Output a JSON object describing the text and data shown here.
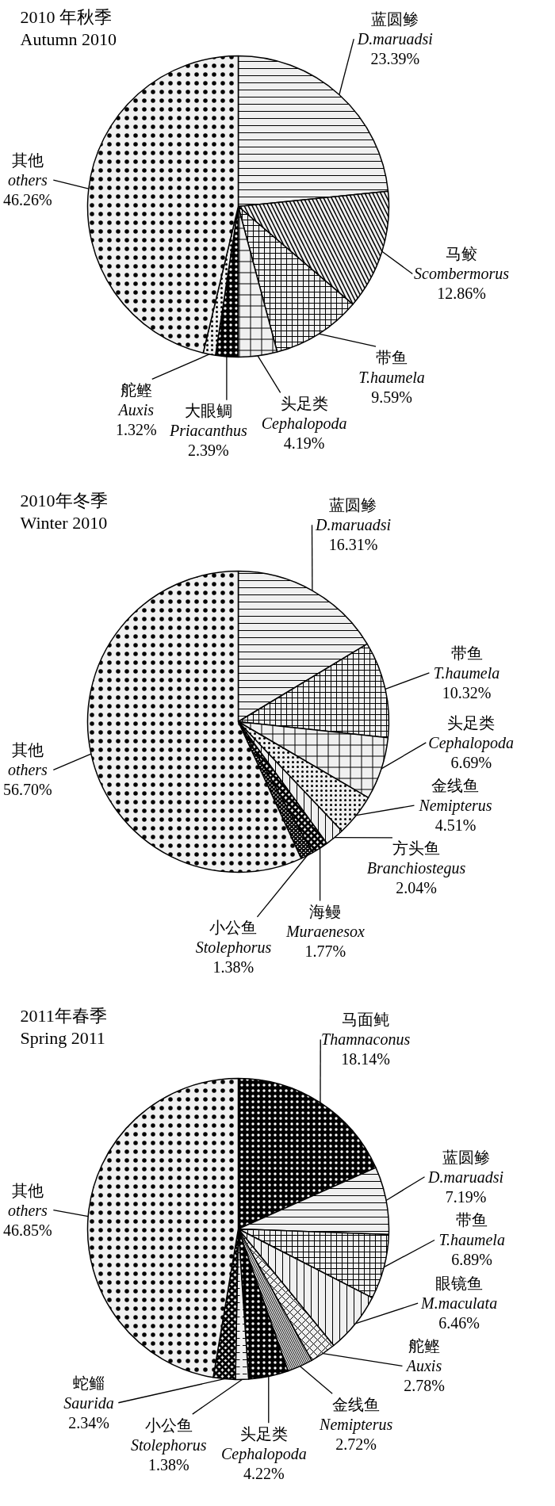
{
  "chart_data": [
    {
      "type": "pie",
      "title": "2010 年秋季",
      "subtitle": "Autumn 2010",
      "categories": [
        "蓝圆鲹\nD.maruadsi",
        "马鲛\nScombermorus",
        "带鱼\nT.haumela",
        "头足类\nCephalopoda",
        "大眼鲷\nPriacanthus",
        "舵鲣\nAuxis",
        "其他\nothers"
      ],
      "values": [
        23.39,
        12.86,
        9.59,
        4.19,
        2.39,
        1.32,
        46.26
      ],
      "value_labels": [
        "23.39%",
        "12.86%",
        "9.59%",
        "4.19%",
        "2.39%",
        "1.32%",
        "46.26%"
      ],
      "colors": [
        "#f0f0f0",
        "#f0f0f0",
        "#f0f0f0",
        "#f0f0f0",
        "#000000",
        "#f0f0f0",
        "#f0f0f0"
      ]
    },
    {
      "type": "pie",
      "title": "2010年冬季",
      "subtitle": "Winter 2010",
      "categories": [
        "蓝圆鲹\nD.maruadsi",
        "带鱼\nT.haumela",
        "头足类\nCephalopoda",
        "金线鱼\nNemipterus",
        "方头鱼\nBranchiostegus",
        "海鳗\nMuraenesox",
        "小公鱼\nStolephorus",
        "其他\nothers"
      ],
      "values": [
        16.31,
        10.32,
        6.69,
        4.51,
        2.04,
        1.77,
        1.38,
        56.7
      ],
      "value_labels": [
        "16.31%",
        "10.32%",
        "6.69%",
        "4.51%",
        "2.04%",
        "1.77%",
        "1.38%",
        "56.70%"
      ],
      "colors": [
        "#f0f0f0",
        "#f0f0f0",
        "#f0f0f0",
        "#f0f0f0",
        "#f0f0f0",
        "#f0f0f0",
        "#f0f0f0",
        "#f0f0f0"
      ]
    },
    {
      "type": "pie",
      "title": "2011年春季",
      "subtitle": "Spring 2011",
      "categories": [
        "马面鲀\nThamnaconus",
        "蓝圆鲹\nD.maruadsi",
        "带鱼\nT.haumela",
        "眼镜鱼\nM.maculata",
        "舵鲣\nAuxis",
        "金线鱼\nNemipterus",
        "头足类\nCephalopoda",
        "小公鱼\nStolephorus",
        "蛇鲻\nSaurida",
        "其他\nothers"
      ],
      "values": [
        18.14,
        7.19,
        6.89,
        6.46,
        2.78,
        2.72,
        4.22,
        1.38,
        2.34,
        46.85
      ],
      "value_labels": [
        "18.14%",
        "7.19%",
        "6.89%",
        "6.46%",
        "2.78%",
        "2.72%",
        "4.22%",
        "1.38%",
        "2.34%",
        "46.85%"
      ],
      "colors": [
        "#000000",
        "#f0f0f0",
        "#f0f0f0",
        "#f0f0f0",
        "#f0f0f0",
        "#f0f0f0",
        "#000000",
        "#f0f0f0",
        "#f0f0f0",
        "#f0f0f0"
      ]
    }
  ]
}
